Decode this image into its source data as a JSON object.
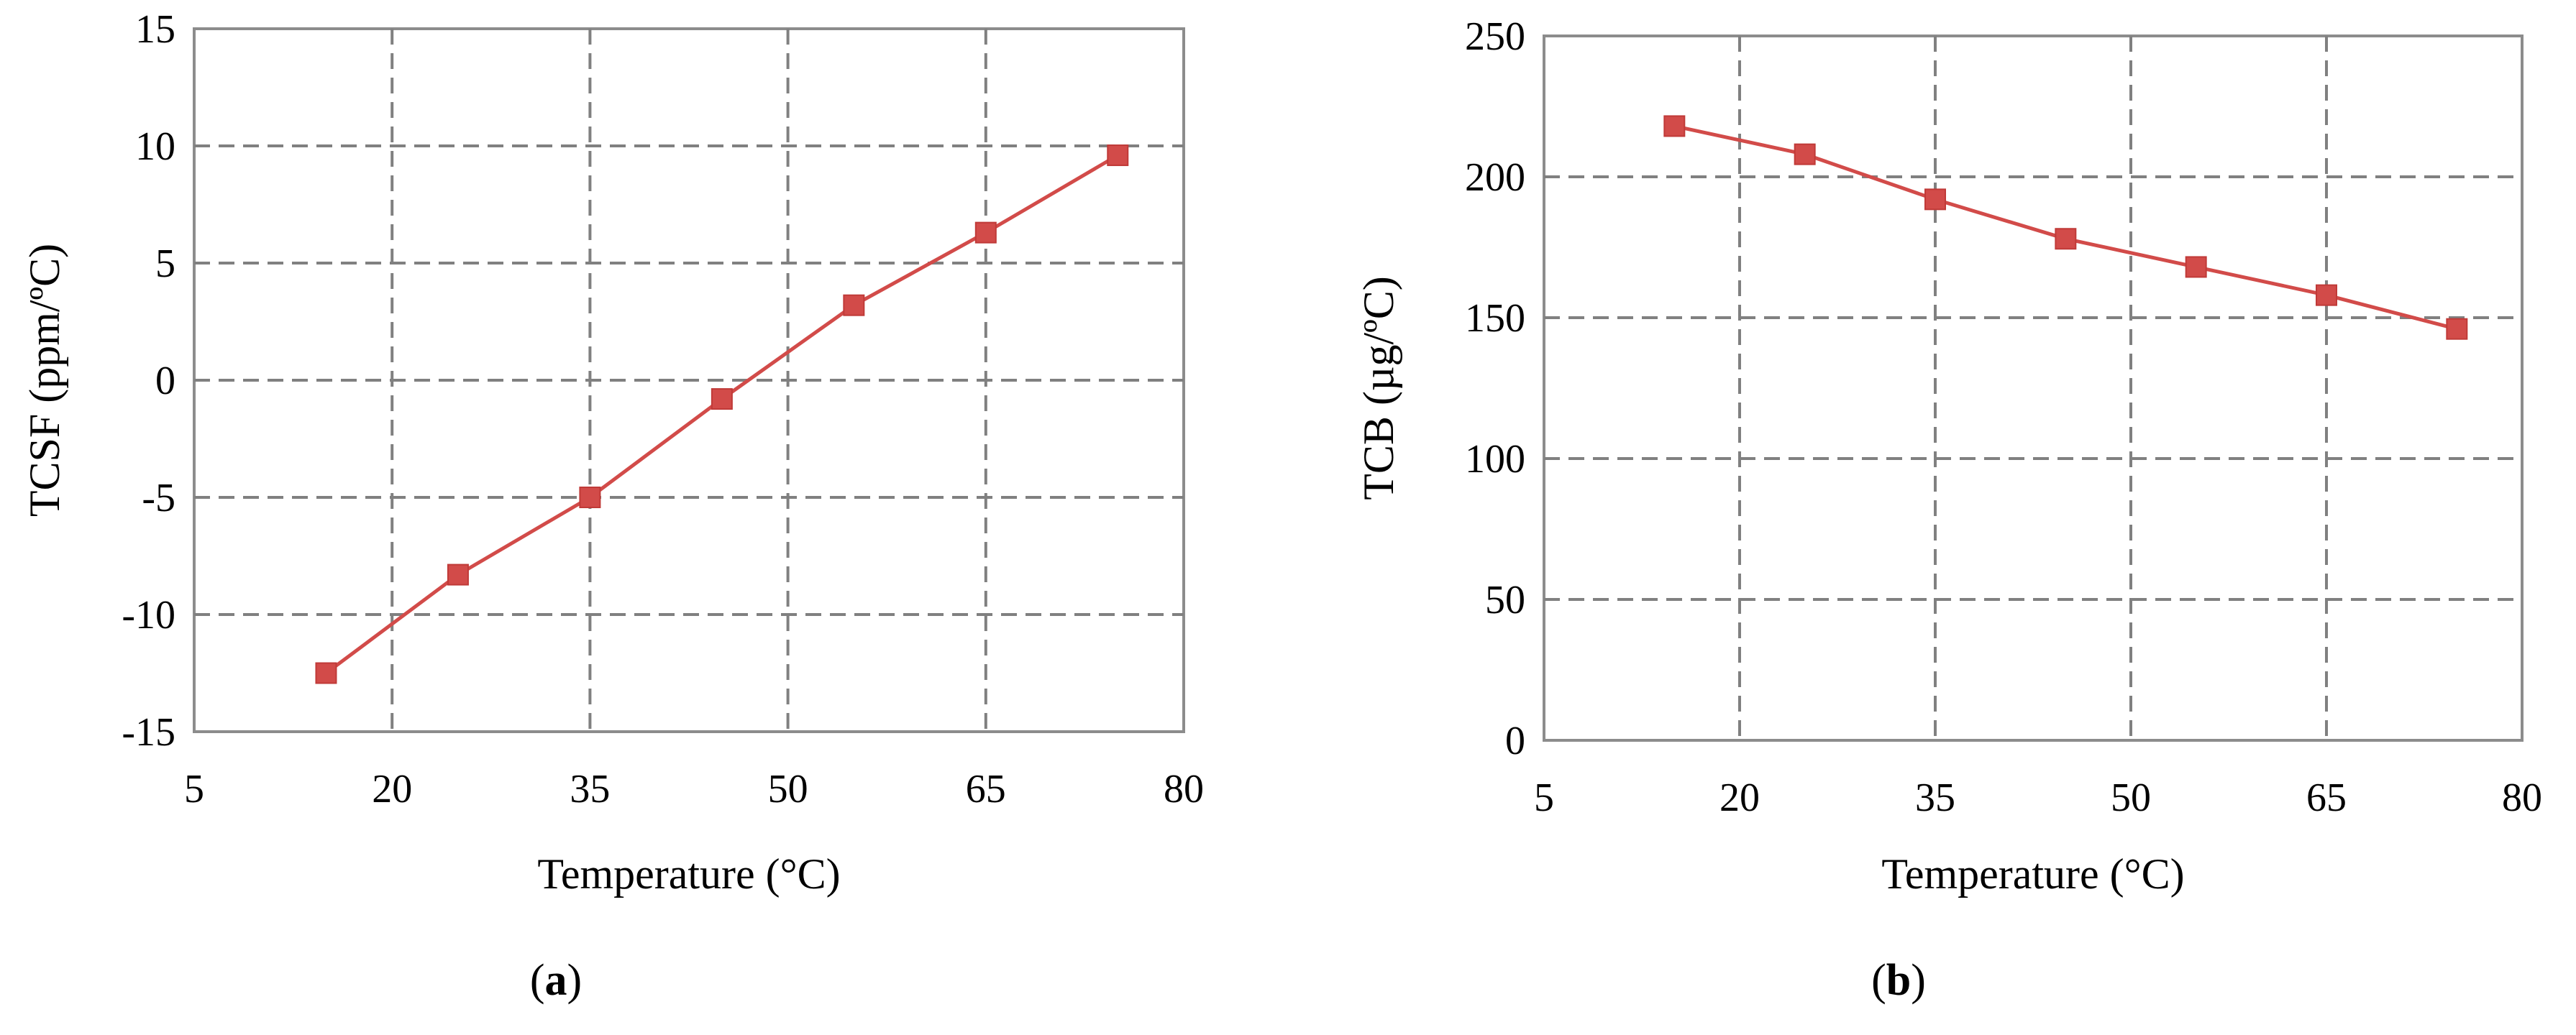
{
  "colors": {
    "series": "#d24b49",
    "grid": "#808080",
    "frame": "#8c8c8c"
  },
  "chart_data": [
    {
      "type": "line",
      "panel_label": "(a)",
      "panel_letter": "a",
      "xlabel": "Temperature (°C)",
      "ylabel": "TCSF (ppm/ºC)",
      "xlim": [
        5,
        80
      ],
      "ylim": [
        -15,
        15
      ],
      "xticks": [
        5,
        20,
        35,
        50,
        65,
        80
      ],
      "yticks": [
        -15,
        -10,
        -5,
        0,
        5,
        10,
        15
      ],
      "grid": true,
      "marker": "square",
      "x": [
        15,
        25,
        35,
        45,
        55,
        65,
        75
      ],
      "y": [
        -12.5,
        -8.3,
        -5.0,
        -0.8,
        3.2,
        6.3,
        9.6
      ]
    },
    {
      "type": "line",
      "panel_label": "(b)",
      "panel_letter": "b",
      "xlabel": "Temperature (°C)",
      "ylabel": "TCB (µg/ºC)",
      "xlim": [
        5,
        80
      ],
      "ylim": [
        0,
        250
      ],
      "xticks": [
        5,
        20,
        35,
        50,
        65,
        80
      ],
      "yticks": [
        0,
        50,
        100,
        150,
        200,
        250
      ],
      "grid": true,
      "marker": "square",
      "x": [
        15,
        25,
        35,
        45,
        55,
        65,
        75
      ],
      "y": [
        218,
        208,
        192,
        178,
        168,
        158,
        146
      ]
    }
  ]
}
